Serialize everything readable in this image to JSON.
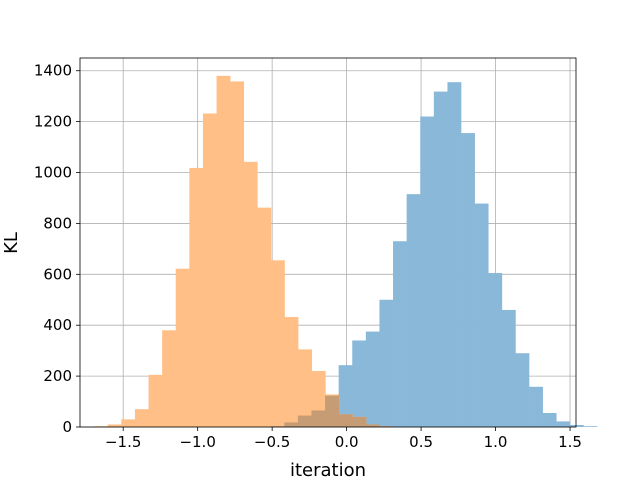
{
  "chart_data": {
    "type": "histogram",
    "title": "",
    "xlabel": "iteration",
    "ylabel": "KL",
    "xlim": [
      -1.79,
      1.54
    ],
    "ylim": [
      0,
      1450
    ],
    "xticks": [
      -1.5,
      -1.0,
      -0.5,
      0.0,
      0.5,
      1.0,
      1.5
    ],
    "xtick_labels": [
      "−1.5",
      "−1.0",
      "−0.5",
      "0.0",
      "0.5",
      "1.0",
      "1.5"
    ],
    "yticks": [
      0,
      200,
      400,
      600,
      800,
      1000,
      1200,
      1400
    ],
    "ytick_labels": [
      "0",
      "200",
      "400",
      "600",
      "800",
      "1000",
      "1200",
      "1400"
    ],
    "grid": true,
    "colors": {
      "orange": "#ffbf86",
      "blue": "#8ab8d9",
      "overlap": "#c69c74"
    },
    "series": [
      {
        "color": "#8ab8d9",
        "bin_start": -0.51,
        "bin_width": 0.0913,
        "values": [
          3,
          18,
          45,
          65,
          123,
          243,
          340,
          375,
          500,
          730,
          915,
          1220,
          1318,
          1355,
          1155,
          878,
          605,
          460,
          290,
          158,
          55,
          22,
          8,
          3
        ]
      },
      {
        "color": "#ffbf86",
        "bin_start": -1.695,
        "bin_width": 0.0913,
        "values": [
          3,
          10,
          30,
          70,
          205,
          380,
          622,
          1018,
          1232,
          1380,
          1358,
          1042,
          862,
          655,
          432,
          305,
          220,
          128,
          50,
          40,
          10,
          3
        ]
      }
    ]
  }
}
